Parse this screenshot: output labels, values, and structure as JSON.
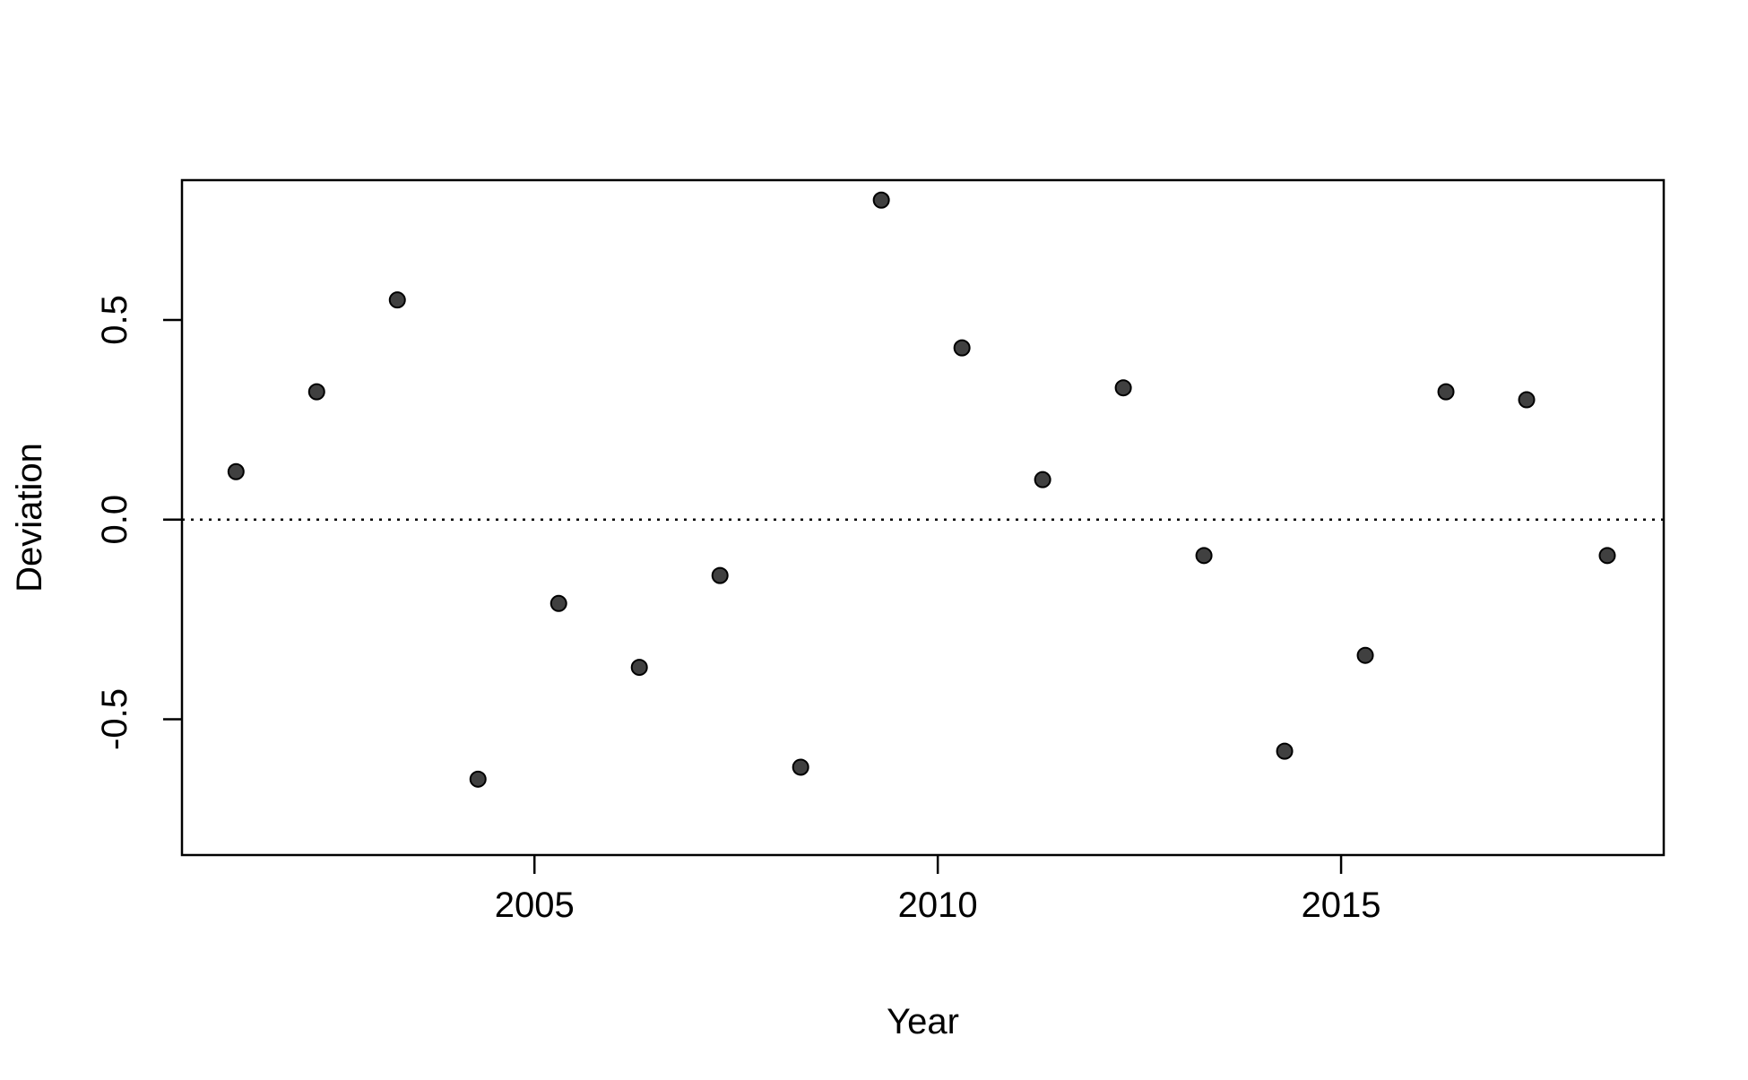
{
  "chart_data": {
    "type": "scatter",
    "title": "",
    "xlabel": "Year",
    "ylabel": "Deviation",
    "xlim": [
      2000.63,
      2019
    ],
    "ylim": [
      -0.84,
      0.85
    ],
    "xticks": [
      2005,
      2010,
      2015
    ],
    "xtick_labels": [
      "2005",
      "2010",
      "2015"
    ],
    "yticks": [
      -0.5,
      0,
      0.5
    ],
    "ytick_labels": [
      "-0.5",
      "0.0",
      "0.5"
    ],
    "reference_line": {
      "y": 0,
      "style": "dotted"
    },
    "grid": false,
    "legend": "none",
    "point_color": "#404040",
    "series": [
      {
        "x": [
          2001.3,
          2002.3,
          2003.3,
          2004.3,
          2005.3,
          2006.3,
          2007.3,
          2008.3,
          2009.3,
          2010.3,
          2011.3,
          2012.3,
          2013.3,
          2014.3,
          2015.3,
          2016.3,
          2017.3,
          2018.3
        ],
        "y": [
          0.12,
          0.32,
          0.55,
          -0.65,
          -0.21,
          -0.37,
          -0.14,
          -0.62,
          0.8,
          0.43,
          0.1,
          0.33,
          -0.09,
          -0.58,
          -0.34,
          0.32,
          0.3,
          -0.09
        ]
      }
    ]
  }
}
